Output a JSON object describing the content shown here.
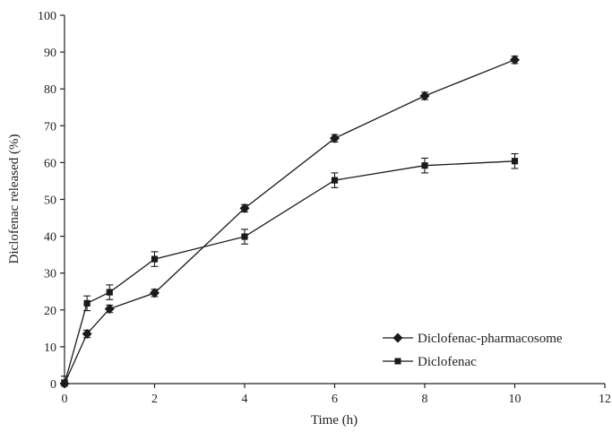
{
  "chart_data": {
    "type": "line",
    "xlabel": "Time (h)",
    "ylabel": "Diclofenac released (%)",
    "xlim": [
      0,
      12
    ],
    "ylim": [
      0,
      100
    ],
    "xticks": [
      0,
      2,
      4,
      6,
      8,
      10,
      12
    ],
    "yticks": [
      0,
      10,
      20,
      30,
      40,
      50,
      60,
      70,
      80,
      90,
      100
    ],
    "grid": false,
    "legend_position": "bottom-right",
    "series": [
      {
        "name": "Diclofenac-pharmacosome",
        "marker": "diamond",
        "x": [
          0,
          0.5,
          1,
          2,
          4,
          6,
          8,
          10
        ],
        "y": [
          0,
          13.5,
          20.3,
          24.6,
          47.6,
          66.6,
          78.1,
          87.9
        ],
        "err": [
          1.0,
          1.0,
          1.0,
          1.0,
          1.0,
          1.0,
          1.0,
          1.0
        ]
      },
      {
        "name": "Diclofenac",
        "marker": "square",
        "x": [
          0,
          0.5,
          1,
          2,
          4,
          6,
          8,
          10
        ],
        "y": [
          0,
          21.8,
          24.8,
          33.8,
          39.9,
          55.2,
          59.2,
          60.4
        ],
        "err": [
          2.0,
          2.0,
          2.0,
          2.0,
          2.0,
          2.0,
          2.0,
          2.0
        ]
      }
    ]
  }
}
